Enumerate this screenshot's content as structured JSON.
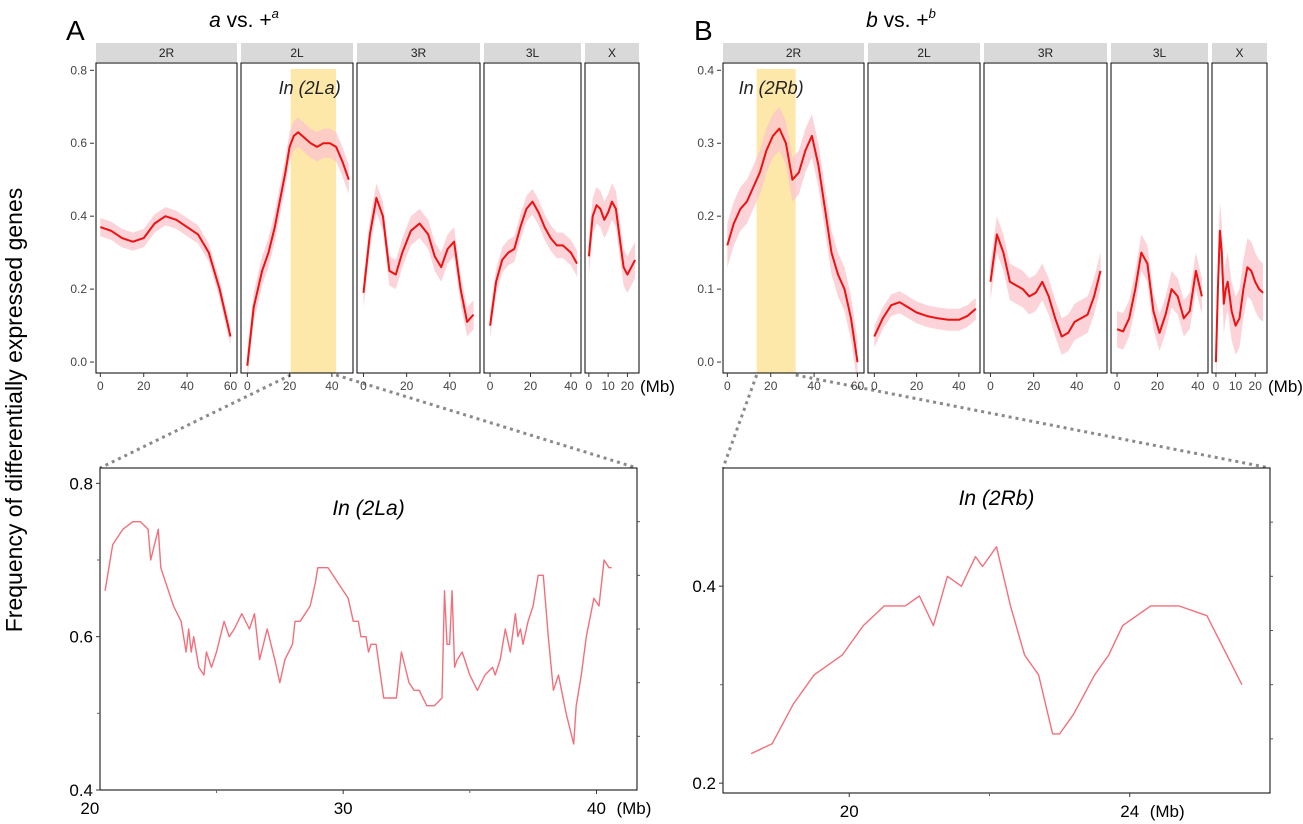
{
  "figure": {
    "y_axis_label": "Frequency of differentially expressed genes",
    "x_unit": "(Mb)"
  },
  "colors": {
    "line": "#ee1111",
    "band": "#f9c4cc",
    "highlight": "#fde49b",
    "strip": "#d9d9d9",
    "zoom_line": "#f2707c",
    "connector": "#8a8a8a"
  },
  "chart_data": [
    {
      "id": "A-top",
      "type": "line",
      "panel_letter": "A",
      "title": "a vs. +a",
      "title_main": "a",
      "title_vs": " vs. +",
      "title_sup": "a",
      "ylim": [
        -0.03,
        0.82
      ],
      "yticks": [
        0.0,
        0.2,
        0.4,
        0.6,
        0.8
      ],
      "ytick_labels": [
        "0.0",
        "0.2",
        "0.4",
        "0.6",
        "0.8"
      ],
      "xunit": "(Mb)",
      "facets": [
        {
          "name": "2R",
          "xlim": [
            -2,
            63
          ],
          "xticks": [
            0,
            20,
            40,
            60
          ],
          "series": [
            {
              "x": [
                0,
                5,
                10,
                15,
                20,
                25,
                30,
                35,
                40,
                45,
                50,
                55,
                60
              ],
              "y": [
                0.37,
                0.36,
                0.34,
                0.33,
                0.34,
                0.38,
                0.4,
                0.39,
                0.37,
                0.35,
                0.3,
                0.2,
                0.07
              ],
              "band": 0.025
            }
          ]
        },
        {
          "name": "2L",
          "xlim": [
            -3,
            50
          ],
          "xticks": [
            0,
            20,
            40
          ],
          "inversion": {
            "label": "In (2La)",
            "x0": 20.5,
            "x1": 42
          },
          "series": [
            {
              "x": [
                0,
                3,
                7,
                10,
                13,
                15,
                18,
                20,
                22,
                24,
                26,
                28,
                30,
                33,
                36,
                39,
                42,
                45,
                48
              ],
              "y": [
                -0.01,
                0.15,
                0.25,
                0.3,
                0.37,
                0.43,
                0.52,
                0.59,
                0.62,
                0.63,
                0.62,
                0.61,
                0.6,
                0.59,
                0.6,
                0.6,
                0.59,
                0.55,
                0.5
              ],
              "band": 0.04
            }
          ]
        },
        {
          "name": "3R",
          "xlim": [
            -3,
            54
          ],
          "xticks": [
            0,
            20,
            40
          ],
          "series": [
            {
              "x": [
                0,
                3,
                6,
                9,
                12,
                15,
                18,
                22,
                26,
                30,
                33,
                36,
                39,
                42,
                45,
                48,
                51
              ],
              "y": [
                0.19,
                0.35,
                0.45,
                0.4,
                0.25,
                0.24,
                0.3,
                0.36,
                0.38,
                0.35,
                0.29,
                0.26,
                0.31,
                0.33,
                0.2,
                0.11,
                0.13
              ],
              "band": 0.04
            }
          ]
        },
        {
          "name": "3L",
          "xlim": [
            -3,
            45
          ],
          "xticks": [
            0,
            20,
            40
          ],
          "series": [
            {
              "x": [
                0,
                3,
                6,
                9,
                12,
                15,
                18,
                21,
                24,
                27,
                30,
                33,
                36,
                40,
                43
              ],
              "y": [
                0.1,
                0.22,
                0.28,
                0.3,
                0.31,
                0.37,
                0.42,
                0.44,
                0.41,
                0.37,
                0.34,
                0.32,
                0.32,
                0.3,
                0.27
              ],
              "band": 0.035
            }
          ]
        },
        {
          "name": "X",
          "xlim": [
            -2,
            26
          ],
          "xticks": [
            0,
            10,
            20
          ],
          "series": [
            {
              "x": [
                0,
                2,
                4,
                6,
                8,
                10,
                12,
                14,
                16,
                18,
                20,
                22,
                24
              ],
              "y": [
                0.29,
                0.4,
                0.43,
                0.42,
                0.39,
                0.41,
                0.44,
                0.42,
                0.34,
                0.26,
                0.24,
                0.26,
                0.28
              ],
              "band": 0.05
            }
          ]
        }
      ]
    },
    {
      "id": "B-top",
      "type": "line",
      "panel_letter": "B",
      "title": "b vs. +b",
      "title_main": "b",
      "title_vs": " vs. +",
      "title_sup": "b",
      "ylim": [
        -0.015,
        0.41
      ],
      "yticks": [
        0.0,
        0.1,
        0.2,
        0.3,
        0.4
      ],
      "ytick_labels": [
        "0.0",
        "0.1",
        "0.2",
        "0.3",
        "0.4"
      ],
      "xunit": "(Mb)",
      "facets": [
        {
          "name": "2R",
          "xlim": [
            -2,
            63
          ],
          "xticks": [
            0,
            20,
            40,
            60
          ],
          "inversion": {
            "label": "In (2Rb)",
            "x0": 13.5,
            "x1": 31.5
          },
          "series": [
            {
              "x": [
                0,
                3,
                6,
                9,
                12,
                15,
                18,
                21,
                24,
                27,
                30,
                33,
                36,
                39,
                42,
                45,
                48,
                51,
                54,
                57,
                60
              ],
              "y": [
                0.16,
                0.19,
                0.21,
                0.22,
                0.24,
                0.26,
                0.29,
                0.31,
                0.32,
                0.3,
                0.25,
                0.26,
                0.29,
                0.31,
                0.27,
                0.21,
                0.15,
                0.12,
                0.1,
                0.06,
                0.0
              ],
              "band": 0.03
            }
          ]
        },
        {
          "name": "2L",
          "xlim": [
            -3,
            50
          ],
          "xticks": [
            0,
            20,
            40
          ],
          "series": [
            {
              "x": [
                0,
                4,
                8,
                12,
                16,
                20,
                25,
                30,
                35,
                40,
                44,
                48
              ],
              "y": [
                0.035,
                0.06,
                0.078,
                0.082,
                0.075,
                0.068,
                0.063,
                0.06,
                0.058,
                0.058,
                0.063,
                0.073
              ],
              "band": 0.015
            }
          ]
        },
        {
          "name": "3R",
          "xlim": [
            -3,
            54
          ],
          "xticks": [
            0,
            20,
            40
          ],
          "series": [
            {
              "x": [
                0,
                3,
                6,
                9,
                12,
                15,
                18,
                21,
                24,
                27,
                30,
                33,
                36,
                39,
                42,
                45,
                48,
                51
              ],
              "y": [
                0.11,
                0.175,
                0.15,
                0.11,
                0.105,
                0.1,
                0.09,
                0.095,
                0.11,
                0.09,
                0.06,
                0.035,
                0.04,
                0.055,
                0.06,
                0.065,
                0.09,
                0.125
              ],
              "band": 0.025
            }
          ]
        },
        {
          "name": "3L",
          "xlim": [
            -3,
            45
          ],
          "xticks": [
            0,
            20,
            40
          ],
          "series": [
            {
              "x": [
                0,
                3,
                6,
                9,
                12,
                15,
                18,
                21,
                24,
                27,
                30,
                33,
                36,
                39,
                42
              ],
              "y": [
                0.045,
                0.042,
                0.06,
                0.1,
                0.15,
                0.135,
                0.07,
                0.04,
                0.065,
                0.1,
                0.09,
                0.06,
                0.07,
                0.125,
                0.09
              ],
              "band": 0.025
            }
          ]
        },
        {
          "name": "X",
          "xlim": [
            -2,
            26
          ],
          "xticks": [
            0,
            10,
            20
          ],
          "series": [
            {
              "x": [
                0,
                1,
                2,
                3,
                4,
                5,
                6,
                7,
                8,
                10,
                12,
                14,
                16,
                18,
                20,
                22,
                24
              ],
              "y": [
                0.0,
                0.1,
                0.18,
                0.15,
                0.08,
                0.1,
                0.11,
                0.09,
                0.07,
                0.05,
                0.06,
                0.1,
                0.13,
                0.125,
                0.11,
                0.1,
                0.095
              ],
              "band": 0.04
            }
          ]
        }
      ]
    },
    {
      "id": "A-zoom",
      "type": "line",
      "title": "In (2La)",
      "xlim": [
        20.4,
        41.6
      ],
      "ylim": [
        0.4,
        0.82
      ],
      "xticks": [
        20,
        30,
        40
      ],
      "xtick_labels": [
        "20",
        "30",
        "40"
      ],
      "yticks": [
        0.4,
        0.6,
        0.8
      ],
      "ytick_labels": [
        "0.4",
        "0.6",
        "0.8"
      ],
      "xunit": "(Mb)",
      "x": [
        20.6,
        20.9,
        21.3,
        21.7,
        22.0,
        22.3,
        22.4,
        22.7,
        22.8,
        22.9,
        23.1,
        23.3,
        23.6,
        23.8,
        23.9,
        24.0,
        24.1,
        24.3,
        24.5,
        24.6,
        24.8,
        25.0,
        25.3,
        25.5,
        25.7,
        26.0,
        26.3,
        26.5,
        26.7,
        27.0,
        27.3,
        27.5,
        27.7,
        28.0,
        28.1,
        28.3,
        28.5,
        28.7,
        28.9,
        29.0,
        29.2,
        29.4,
        29.6,
        29.8,
        30.2,
        30.4,
        30.6,
        30.7,
        30.9,
        31.0,
        31.1,
        31.3,
        31.6,
        31.8,
        32.1,
        32.3,
        32.6,
        32.8,
        33.0,
        33.3,
        33.6,
        33.9,
        34.0,
        34.1,
        34.2,
        34.3,
        34.4,
        34.5,
        34.7,
        35.0,
        35.3,
        35.6,
        35.9,
        36.0,
        36.2,
        36.4,
        36.6,
        36.8,
        36.9,
        37.0,
        37.1,
        37.3,
        37.5,
        37.7,
        37.9,
        38.1,
        38.3,
        38.5,
        38.8,
        39.1,
        39.2,
        39.4,
        39.6,
        39.9,
        40.1,
        40.3,
        40.5,
        40.6
      ],
      "y": [
        0.66,
        0.72,
        0.74,
        0.75,
        0.75,
        0.74,
        0.7,
        0.74,
        0.69,
        0.68,
        0.66,
        0.64,
        0.62,
        0.58,
        0.61,
        0.58,
        0.6,
        0.56,
        0.55,
        0.58,
        0.56,
        0.58,
        0.62,
        0.6,
        0.61,
        0.63,
        0.61,
        0.63,
        0.57,
        0.61,
        0.57,
        0.54,
        0.57,
        0.59,
        0.62,
        0.62,
        0.63,
        0.64,
        0.67,
        0.69,
        0.69,
        0.69,
        0.68,
        0.67,
        0.65,
        0.62,
        0.62,
        0.6,
        0.6,
        0.58,
        0.59,
        0.59,
        0.52,
        0.52,
        0.52,
        0.58,
        0.54,
        0.53,
        0.53,
        0.51,
        0.51,
        0.52,
        0.66,
        0.59,
        0.59,
        0.66,
        0.56,
        0.57,
        0.58,
        0.55,
        0.53,
        0.55,
        0.56,
        0.55,
        0.57,
        0.61,
        0.58,
        0.63,
        0.6,
        0.61,
        0.59,
        0.62,
        0.64,
        0.68,
        0.68,
        0.6,
        0.53,
        0.55,
        0.5,
        0.46,
        0.51,
        0.55,
        0.6,
        0.65,
        0.64,
        0.7,
        0.69,
        0.69
      ]
    },
    {
      "id": "B-zoom",
      "type": "line",
      "title": "In (2Rb)",
      "xlim": [
        18.2,
        26.0
      ],
      "ylim": [
        0.19,
        0.52
      ],
      "xticks": [
        20,
        24
      ],
      "xtick_labels": [
        "20",
        "24"
      ],
      "yticks": [
        0.2,
        0.4
      ],
      "ytick_labels": [
        "0.2",
        "0.4"
      ],
      "xunit": "(Mb)",
      "x": [
        18.6,
        18.9,
        19.2,
        19.5,
        19.9,
        20.2,
        20.5,
        20.8,
        21.0,
        21.2,
        21.4,
        21.6,
        21.8,
        21.9,
        22.1,
        22.3,
        22.5,
        22.7,
        22.9,
        23.0,
        23.2,
        23.5,
        23.7,
        23.9,
        24.3,
        24.7,
        25.1,
        25.6
      ],
      "y": [
        0.23,
        0.24,
        0.28,
        0.31,
        0.33,
        0.36,
        0.38,
        0.38,
        0.39,
        0.36,
        0.41,
        0.4,
        0.43,
        0.42,
        0.44,
        0.38,
        0.33,
        0.31,
        0.25,
        0.25,
        0.27,
        0.31,
        0.33,
        0.36,
        0.38,
        0.38,
        0.37,
        0.3
      ]
    }
  ]
}
